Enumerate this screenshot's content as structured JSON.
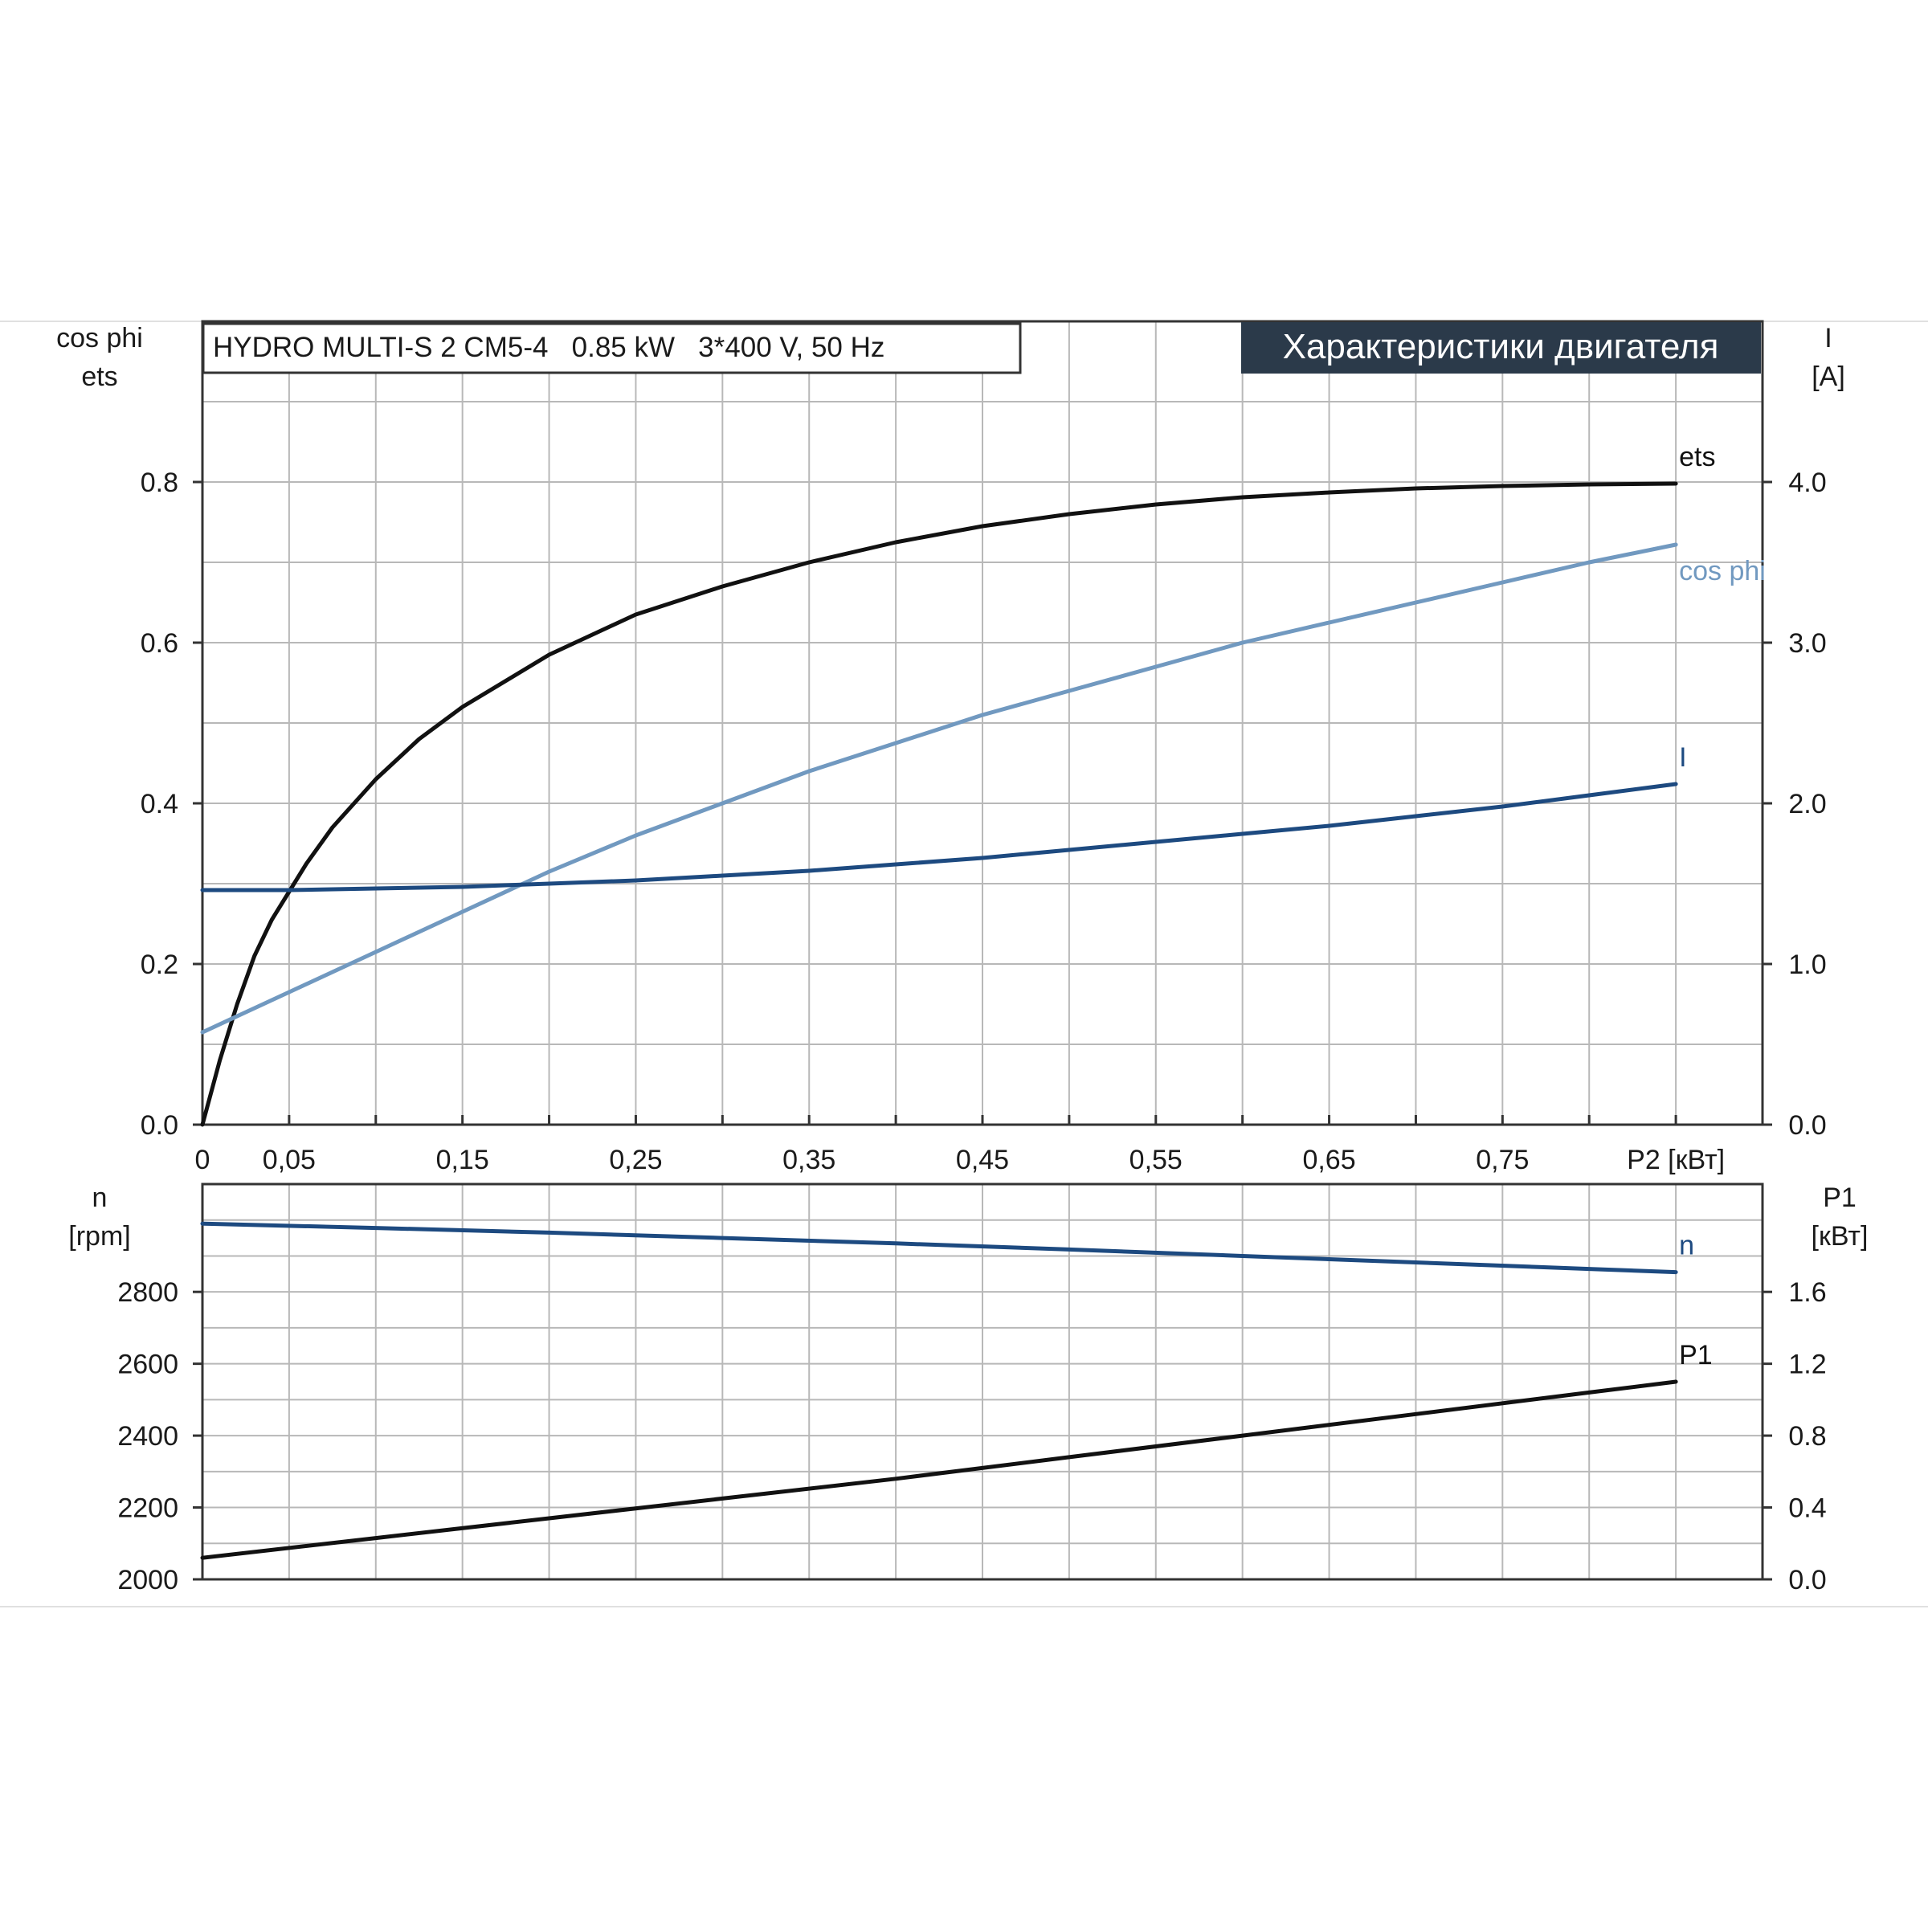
{
  "header": {
    "model": "HYDRO MULTI-S 2 CM5-4   0.85 kW   3*400 V, 50 Hz",
    "title": "Характеристики двигателя"
  },
  "colors": {
    "ets": "#111111",
    "cos_phi": "#7199c0",
    "current": "#1d4a80",
    "speed": "#1d4a80",
    "p1": "#111111",
    "title_bg": "#2b3a4a",
    "title_fg": "#ffffff"
  },
  "chart_data": [
    {
      "type": "line",
      "panel": "top",
      "x_axis": {
        "label": "P2 [кВт]",
        "range": [
          0,
          0.9
        ],
        "ticks": [
          0,
          0.05,
          0.15,
          0.25,
          0.35,
          0.45,
          0.55,
          0.65,
          0.75
        ],
        "tick_labels": [
          "0",
          "0,05",
          "0,15",
          "0,25",
          "0,35",
          "0,45",
          "0,55",
          "0,65",
          "0,75"
        ]
      },
      "y_left": {
        "label_lines": [
          "cos phi",
          "ets"
        ],
        "range": [
          0,
          1.0
        ],
        "ticks": [
          0,
          0.2,
          0.4,
          0.6,
          0.8
        ],
        "tick_labels": [
          "0.0",
          "0.2",
          "0.4",
          "0.6",
          "0.8"
        ]
      },
      "y_right": {
        "label_lines": [
          "I",
          "[A]"
        ],
        "range": [
          0,
          5.0
        ],
        "ticks": [
          0,
          1,
          2,
          3,
          4
        ],
        "tick_labels": [
          "0.0",
          "1.0",
          "2.0",
          "3.0",
          "4.0"
        ]
      },
      "grid": true,
      "series": [
        {
          "name": "ets",
          "axis": "left",
          "label_position": "end-above",
          "x": [
            0,
            0.01,
            0.02,
            0.03,
            0.04,
            0.05,
            0.06,
            0.075,
            0.1,
            0.125,
            0.15,
            0.2,
            0.25,
            0.3,
            0.35,
            0.4,
            0.45,
            0.5,
            0.55,
            0.6,
            0.65,
            0.7,
            0.75,
            0.8,
            0.85
          ],
          "y": [
            0.0,
            0.08,
            0.15,
            0.21,
            0.255,
            0.29,
            0.325,
            0.37,
            0.43,
            0.48,
            0.52,
            0.585,
            0.635,
            0.67,
            0.7,
            0.725,
            0.745,
            0.76,
            0.772,
            0.781,
            0.787,
            0.792,
            0.795,
            0.797,
            0.798
          ]
        },
        {
          "name": "cos phi",
          "axis": "left",
          "label_position": "end-below",
          "x": [
            0,
            0.05,
            0.1,
            0.15,
            0.2,
            0.25,
            0.3,
            0.35,
            0.4,
            0.45,
            0.5,
            0.55,
            0.6,
            0.65,
            0.7,
            0.75,
            0.8,
            0.85
          ],
          "y": [
            0.115,
            0.165,
            0.215,
            0.265,
            0.315,
            0.36,
            0.4,
            0.44,
            0.475,
            0.51,
            0.54,
            0.57,
            0.6,
            0.625,
            0.65,
            0.675,
            0.7,
            0.722
          ]
        },
        {
          "name": "I",
          "axis": "right",
          "label_position": "end-above",
          "x": [
            0,
            0.05,
            0.1,
            0.15,
            0.2,
            0.25,
            0.3,
            0.35,
            0.4,
            0.45,
            0.5,
            0.55,
            0.6,
            0.65,
            0.7,
            0.75,
            0.8,
            0.85
          ],
          "y": [
            1.46,
            1.46,
            1.47,
            1.48,
            1.5,
            1.52,
            1.55,
            1.58,
            1.62,
            1.66,
            1.71,
            1.76,
            1.81,
            1.86,
            1.92,
            1.98,
            2.05,
            2.12
          ]
        }
      ]
    },
    {
      "type": "line",
      "panel": "bottom",
      "x_axis": {
        "range": [
          0,
          0.9
        ]
      },
      "y_left": {
        "label_lines": [
          "n",
          "[rpm]"
        ],
        "range": [
          2000,
          3100
        ],
        "ticks": [
          2000,
          2200,
          2400,
          2600,
          2800
        ],
        "tick_labels": [
          "2000",
          "2200",
          "2400",
          "2600",
          "2800"
        ]
      },
      "y_right": {
        "label_lines": [
          "P1",
          "[кВт]"
        ],
        "range": [
          0,
          2.2
        ],
        "ticks": [
          0,
          0.4,
          0.8,
          1.2,
          1.6
        ],
        "tick_labels": [
          "0.0",
          "0.4",
          "0.8",
          "1.2",
          "1.6"
        ]
      },
      "grid": true,
      "series": [
        {
          "name": "n",
          "axis": "left",
          "label_position": "end-above",
          "x": [
            0,
            0.1,
            0.2,
            0.3,
            0.4,
            0.5,
            0.6,
            0.7,
            0.8,
            0.85
          ],
          "y": [
            2990,
            2978,
            2965,
            2950,
            2935,
            2918,
            2900,
            2882,
            2864,
            2855
          ]
        },
        {
          "name": "P1",
          "axis": "right",
          "label_position": "end-above",
          "x": [
            0,
            0.1,
            0.2,
            0.3,
            0.4,
            0.5,
            0.6,
            0.7,
            0.8,
            0.85
          ],
          "y": [
            0.12,
            0.23,
            0.34,
            0.45,
            0.56,
            0.68,
            0.8,
            0.92,
            1.04,
            1.1
          ]
        }
      ]
    }
  ]
}
